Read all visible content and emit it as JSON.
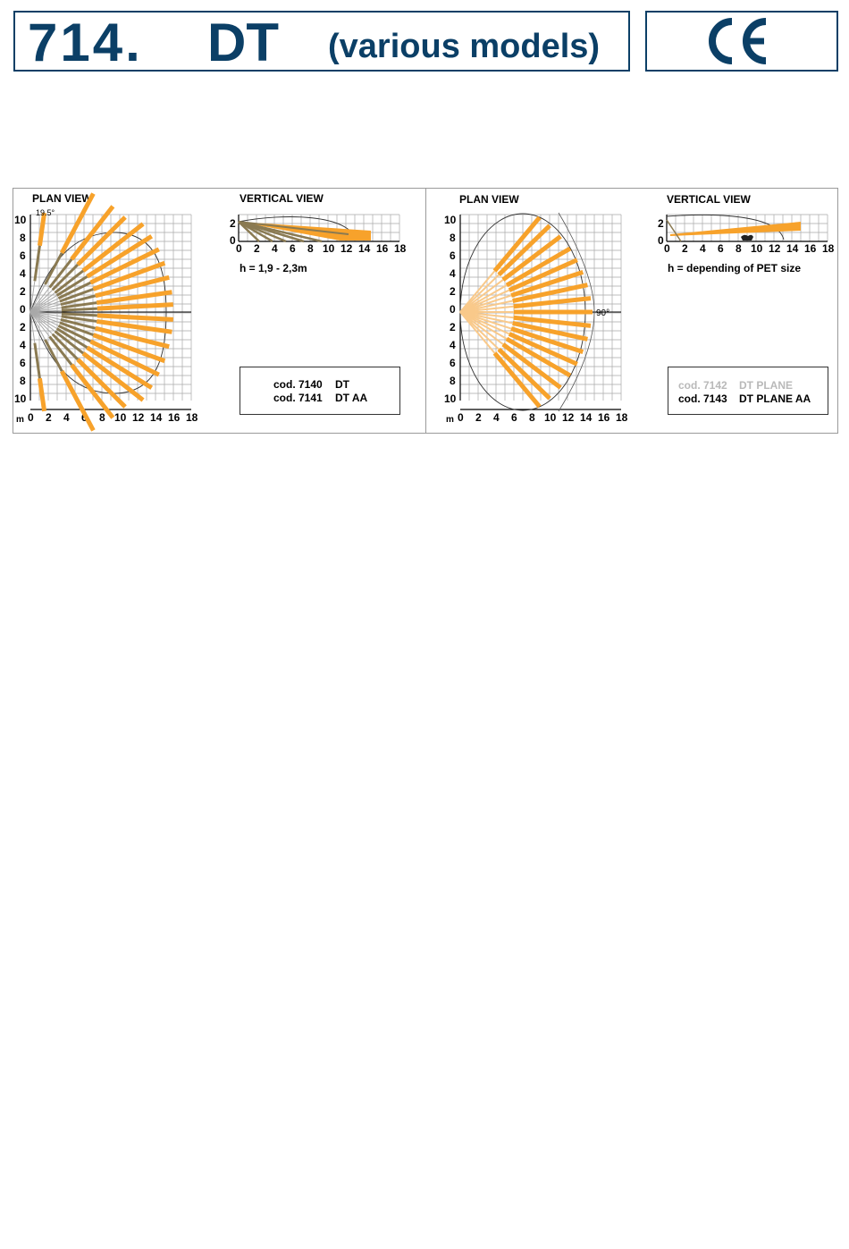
{
  "header": {
    "code": "714.",
    "model": "DT",
    "subtitle": "(various models)",
    "mark": "CE"
  },
  "left_panel": {
    "plan_title": "PLAN VIEW",
    "vertical_title": "VERTICAL VIEW",
    "angle_label": "19.5°",
    "unit_label": "m",
    "height_note": "h = 1,9 - 2,3m",
    "codes": [
      {
        "code": "cod. 7140",
        "name": "DT"
      },
      {
        "code": "cod. 7141",
        "name": "DT AA"
      }
    ]
  },
  "right_panel": {
    "plan_title": "PLAN VIEW",
    "vertical_title": "VERTICAL VIEW",
    "angle_label": "90°",
    "unit_label": "m",
    "height_note": "h = depending of PET size",
    "codes": [
      {
        "code": "cod. 7142",
        "name": "DT PLANE"
      },
      {
        "code": "cod. 7143",
        "name": "DT PLANE AA"
      }
    ]
  },
  "axes": {
    "plan_y_labels": [
      "10",
      "8",
      "6",
      "4",
      "2",
      "0",
      "2",
      "4",
      "6",
      "8",
      "10"
    ],
    "x_labels": [
      "0",
      "2",
      "4",
      "6",
      "8",
      "10",
      "12",
      "14",
      "16",
      "18"
    ],
    "vert_y_labels": [
      "2",
      "0"
    ]
  },
  "colors": {
    "brand_blue": "#0b3f66",
    "beam_orange": "#f7a22b",
    "beam_light": "#f9c98a",
    "beam_dark": "#8a7a52"
  }
}
